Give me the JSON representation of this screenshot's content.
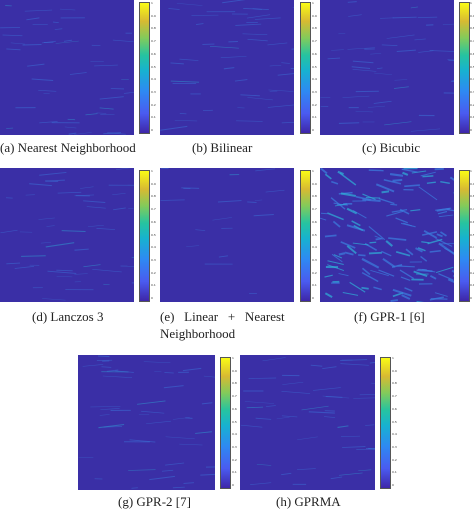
{
  "panels": [
    {
      "id": "a",
      "caption": "(a) Nearest Neighborhood"
    },
    {
      "id": "b",
      "caption": "(b) Bilinear"
    },
    {
      "id": "c",
      "caption": "(c) Bicubic"
    },
    {
      "id": "d",
      "caption": "(d) Lanczos 3"
    },
    {
      "id": "e",
      "caption_line1": "(e)   Linear   +   Nearest",
      "caption_line2": "Neighborhood"
    },
    {
      "id": "f",
      "caption": "(f) GPR-1 [6]"
    },
    {
      "id": "g",
      "caption": "(g) GPR-2 [7]"
    },
    {
      "id": "h",
      "caption": "(h) GPRMA"
    }
  ],
  "colorbar_ticks": [
    "1",
    "0.9",
    "0.8",
    "0.7",
    "0.6",
    "0.5",
    "0.4",
    "0.3",
    "0.2",
    "0.1",
    "0"
  ],
  "colors": {
    "background": "#3a2fa6",
    "streak": "#3c7fe0",
    "highlight": "#2fb0d8"
  }
}
